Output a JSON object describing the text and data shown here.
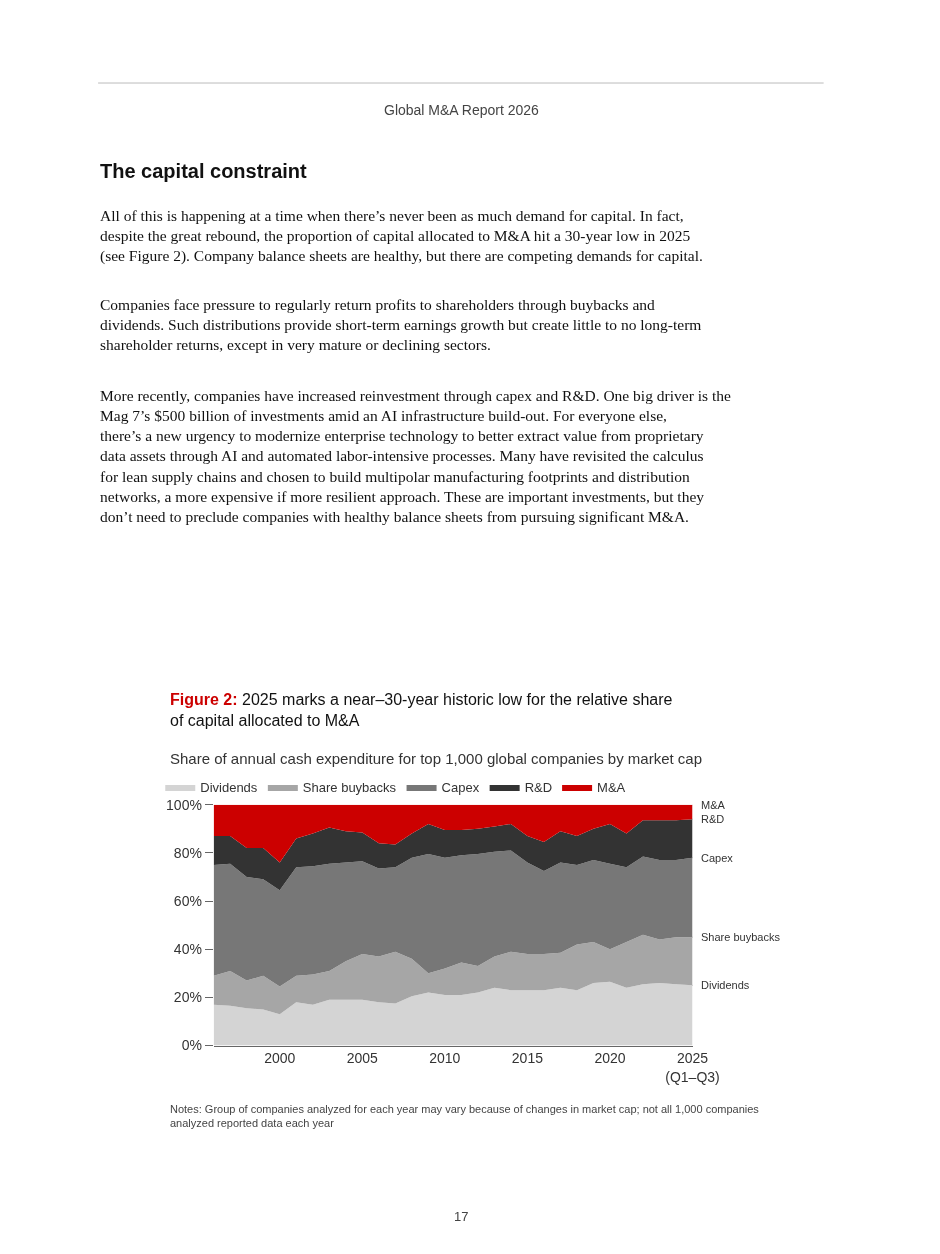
{
  "chart_data": {
    "type": "area",
    "stacked": true,
    "title": "Figure 2: 2025 marks a near–30-year historic low for the relative share of capital allocated to M&A",
    "subtitle": "Share of annual cash expenditure for top 1,000 global companies by market cap",
    "x": [
      1996,
      1997,
      1998,
      1999,
      2000,
      2001,
      2002,
      2003,
      2004,
      2005,
      2006,
      2007,
      2008,
      2009,
      2010,
      2011,
      2012,
      2013,
      2014,
      2015,
      2016,
      2017,
      2018,
      2019,
      2020,
      2021,
      2022,
      2023,
      2024,
      2025
    ],
    "series": [
      {
        "name": "Dividends",
        "color": "#d4d4d4",
        "values": [
          17,
          16.5,
          15.5,
          15,
          13,
          18,
          17,
          19,
          19,
          19,
          18,
          17.5,
          20.5,
          22,
          21,
          21,
          22,
          24,
          23,
          23,
          23,
          24,
          23,
          26,
          26.5,
          24,
          25.5,
          26,
          25.5,
          25
        ]
      },
      {
        "name": "Share buybacks",
        "color": "#a6a6a6",
        "values": [
          12,
          14.5,
          11.5,
          14,
          11.5,
          11,
          12.5,
          12,
          16,
          19,
          19,
          21.5,
          15.5,
          8,
          11,
          13.5,
          11,
          13,
          16,
          15,
          15,
          14.5,
          19,
          17,
          13.5,
          19,
          20.5,
          18,
          19.5,
          20
        ]
      },
      {
        "name": "Capex",
        "color": "#777777",
        "values": [
          46,
          44.5,
          43,
          40,
          40,
          45,
          45,
          44.5,
          41,
          38.5,
          36.5,
          35,
          42,
          49.5,
          46,
          44.5,
          46.5,
          43.5,
          42,
          38,
          34.5,
          37.5,
          33,
          34,
          35.5,
          31,
          32.5,
          33,
          32,
          33
        ]
      },
      {
        "name": "R&D",
        "color": "#333333",
        "values": [
          12,
          11.5,
          12,
          13,
          11.5,
          12,
          13.5,
          15,
          13,
          12,
          10.5,
          9.5,
          10,
          12.5,
          11.5,
          10.5,
          10.5,
          10.5,
          11,
          11,
          12,
          13,
          12,
          13,
          16.5,
          14,
          15,
          16.5,
          16.5,
          16
        ]
      },
      {
        "name": "M&A",
        "color": "#cc0000",
        "values": [
          13,
          13,
          18,
          18,
          24,
          14,
          12,
          9.5,
          11,
          11.5,
          16,
          16.5,
          12,
          8,
          10.5,
          10.5,
          10,
          9,
          8,
          13,
          15.5,
          11,
          13,
          10,
          8,
          12,
          6.5,
          6.5,
          6.5,
          6
        ]
      }
    ],
    "xlim": [
      1996,
      2025
    ],
    "xticks": [
      2000,
      2005,
      2010,
      2015,
      {
        "value": 2020,
        "label": "2020"
      },
      {
        "value": 2025,
        "label": "2025\n(Q1–Q3)"
      }
    ],
    "ylim": [
      0,
      100
    ],
    "yticks": [
      {
        "value": 0,
        "label": "0%"
      },
      {
        "value": 20,
        "label": "20%"
      },
      {
        "value": 40,
        "label": "40%"
      },
      {
        "value": 60,
        "label": "60%"
      },
      {
        "value": 80,
        "label": "80%"
      },
      {
        "value": 100,
        "label": "100%"
      }
    ],
    "legend": "top left",
    "annotations": [
      "Global M&A Report 2026",
      "The capital constraint",
      "All of this is happening at a time when there’s never been as much demand for capital. In fact, despite the great rebound, the proportion of capital allocated to M&A hit a 30-year low in 2025 (see Figure 2). Company balance sheets are healthy, but there are competing demands for capital.",
      "Companies face pressure to regularly return profits to shareholders through buybacks and dividends. Such distributions provide short-term earnings growth but create little to no long-term shareholder returns, except in very mature or declining sectors.",
      "More recently, companies have increased reinvestment through capex and R&D. One big driver is the Mag 7’s $500 billion of investments amid an AI infrastructure build-out. For everyone else, there’s a new urgency to modernize enterprise technology to better extract value from proprietary data assets through AI and automated labor-intensive processes. Many have revisited the calculus for lean supply chains and chosen to build multipolar manufacturing footprints and distribution networks, a more expensive if more resilient approach. These are important investments, but they don’t need to preclude companies with healthy balance sheets from pursuing significant M&A.",
      "Notes: Group of companies analyzed for each year may vary because of changes in market cap; not all 1,000 companies analyzed reported data each year",
      "17"
    ]
  }
}
